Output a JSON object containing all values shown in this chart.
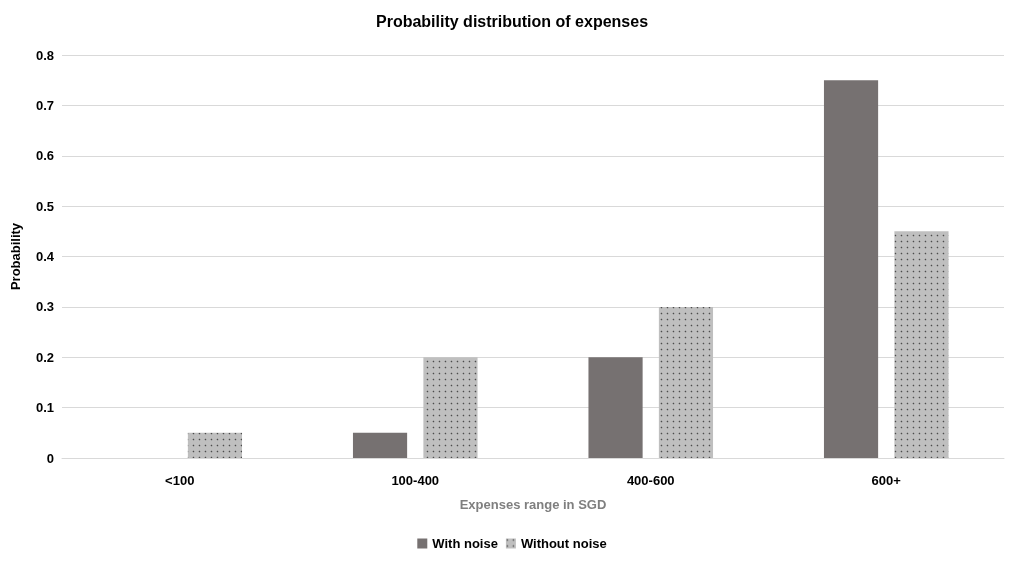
{
  "chart_data": {
    "type": "bar",
    "title": "Probability distribution of expenses",
    "xlabel": "Expenses range in SGD",
    "ylabel": "Probability",
    "categories": [
      "<100",
      "100-400",
      "400-600",
      "600+"
    ],
    "series": [
      {
        "name": "With noise",
        "color": "#767171",
        "values": [
          0,
          0.05,
          0.2,
          0.75
        ]
      },
      {
        "name": "Without noise",
        "color": "#bfbfbf",
        "values": [
          0.05,
          0.2,
          0.3,
          0.45
        ]
      }
    ],
    "ylim": [
      0,
      0.8
    ],
    "yticks": [
      0,
      0.1,
      0.2,
      0.3,
      0.4,
      0.5,
      0.6,
      0.7,
      0.8
    ],
    "grid": "y",
    "legend": "bottom"
  }
}
